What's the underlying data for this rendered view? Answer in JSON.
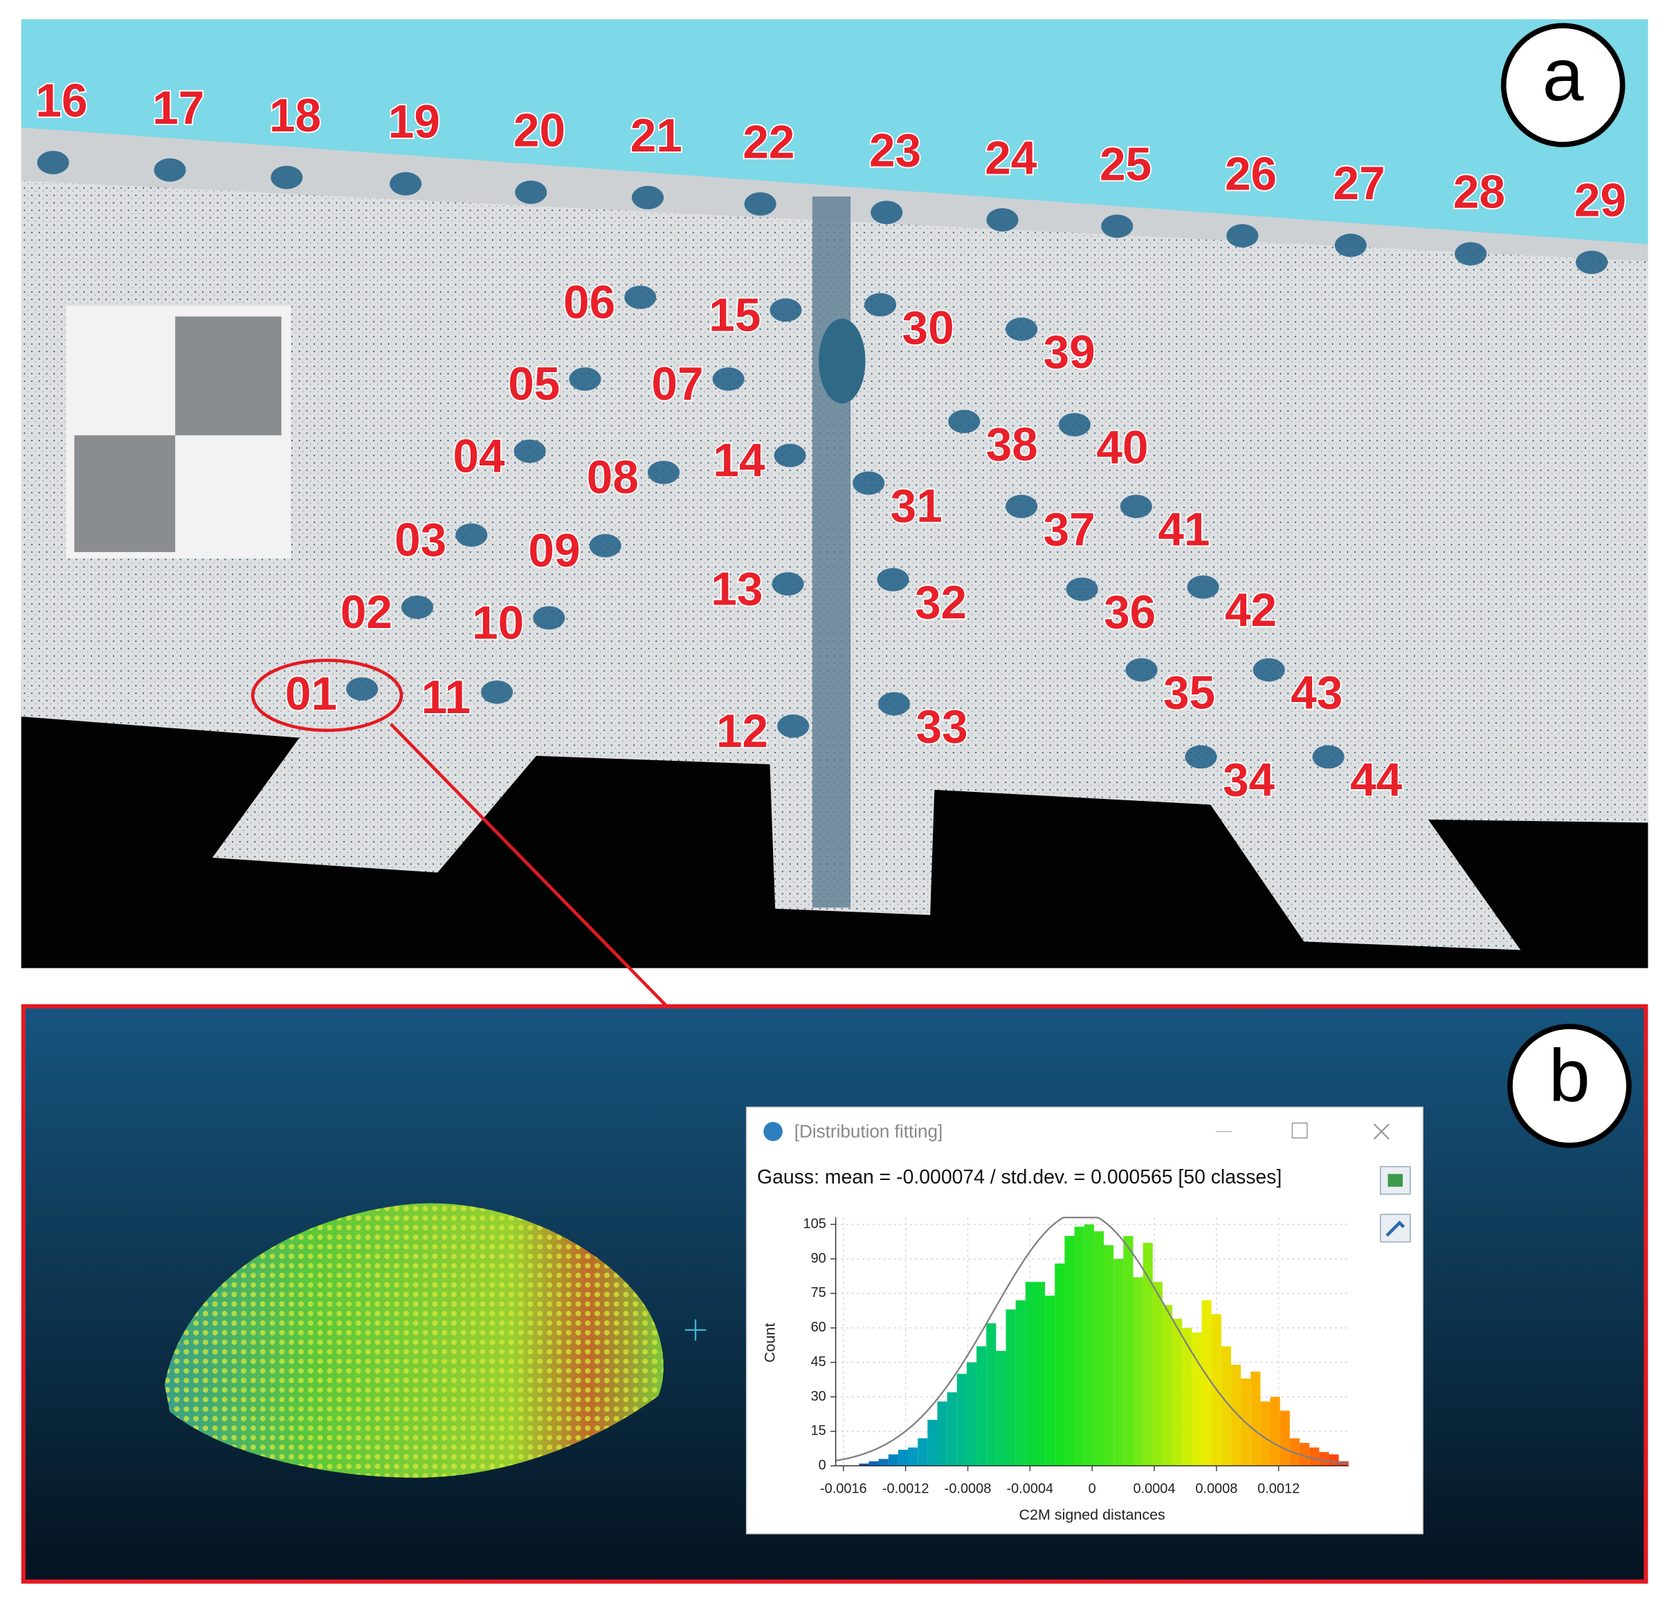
{
  "panel_a": {
    "label": "a",
    "bolt_ids": [
      "16",
      "17",
      "18",
      "19",
      "20",
      "21",
      "22",
      "23",
      "24",
      "25",
      "26",
      "27",
      "28",
      "29",
      "06",
      "15",
      "30",
      "39",
      "05",
      "07",
      "04",
      "14",
      "38",
      "40",
      "08",
      "31",
      "37",
      "41",
      "03",
      "09",
      "02",
      "10",
      "13",
      "32",
      "36",
      "42",
      "01",
      "11",
      "35",
      "43",
      "12",
      "33",
      "34",
      "44"
    ]
  },
  "panel_b": {
    "label": "b",
    "window_title": "[Distribution fitting]"
  },
  "chart_data": {
    "type": "histogram",
    "title": "Gauss: mean = -0.000074 / std.dev. = 0.000565 [50 classes]",
    "x_label": "C2M signed distances",
    "y_label": "Count",
    "bins": [
      -0.0015,
      -0.001437,
      -0.001374,
      -0.001311,
      -0.001248,
      -0.001185,
      -0.001122,
      -0.001059,
      -0.000996,
      -0.000933,
      -0.00087,
      -0.000807,
      -0.000744,
      -0.000681,
      -0.000618,
      -0.000555,
      -0.000492,
      -0.000429,
      -0.000366,
      -0.000303,
      -0.00024,
      -0.000177,
      -0.000114,
      -5.1e-05,
      1.2e-05,
      7.5e-05,
      0.000138,
      0.000201,
      0.000264,
      0.000327,
      0.00039,
      0.000453,
      0.000516,
      0.000579,
      0.000642,
      0.000705,
      0.000768,
      0.000831,
      0.000894,
      0.000957,
      0.00102,
      0.001083,
      0.001146,
      0.001209,
      0.001272,
      0.001335,
      0.001398,
      0.001461,
      0.001524,
      0.001587,
      0.00165
    ],
    "counts": [
      1,
      2,
      3,
      5,
      7,
      8,
      12,
      20,
      28,
      32,
      40,
      45,
      52,
      62,
      50,
      68,
      72,
      80,
      80,
      74,
      88,
      100,
      104,
      105,
      102,
      96,
      90,
      100,
      82,
      97,
      80,
      70,
      64,
      60,
      58,
      72,
      66,
      52,
      44,
      38,
      41,
      28,
      30,
      24,
      12,
      10,
      8,
      6,
      5,
      2
    ],
    "xlim": [
      -0.00165,
      0.00165
    ],
    "ylim": [
      0,
      108
    ],
    "xticks": [
      -0.0016,
      -0.0012,
      -0.0008,
      -0.0004,
      0,
      0.0004,
      0.0008,
      0.0012
    ],
    "yticks": [
      0,
      15,
      30,
      45,
      60,
      75,
      90,
      105
    ],
    "grid": true,
    "colormap": [
      "#1a2fa8",
      "#0098c8",
      "#00c870",
      "#10e020",
      "#60e818",
      "#e8f000",
      "#ffa000",
      "#ff3010"
    ],
    "fit": {
      "mean": -7.4e-05,
      "std": 0.000565,
      "color": "#808080"
    }
  }
}
